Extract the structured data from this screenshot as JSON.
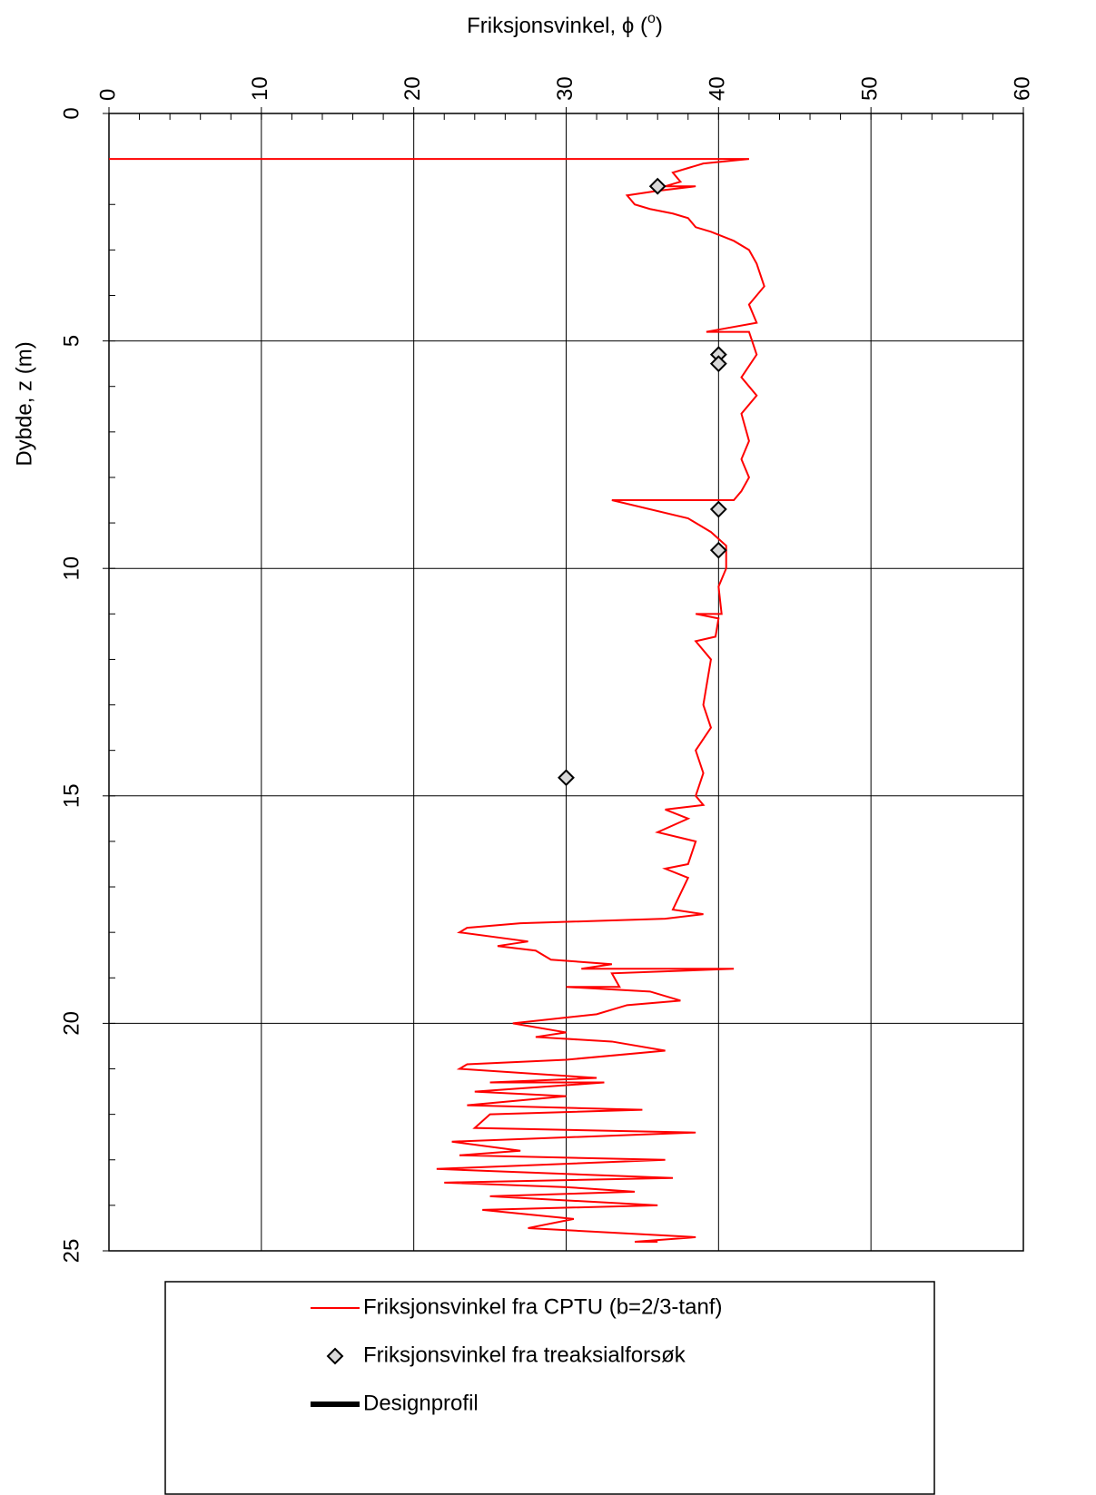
{
  "chart_data": {
    "type": "line",
    "xlabel": [
      "Friksjonsvinkel, ϕ (",
      "o",
      ")"
    ],
    "ylabel": "Dybde, z (m)",
    "xlim": [
      0,
      60
    ],
    "xticks": [
      0,
      10,
      20,
      30,
      40,
      50,
      60
    ],
    "ylim": [
      0,
      25
    ],
    "yticks": [
      0,
      5,
      10,
      15,
      20,
      25
    ],
    "y_inverted": true,
    "grid": true,
    "series": [
      {
        "name": "Friksjonsvinkel fra CPTU (b=2/3-tanf)",
        "color": "#ff0000",
        "marker": "line",
        "x": [
          0,
          42,
          39,
          38,
          37,
          37.5,
          36.5,
          38.5,
          36,
          34,
          34.5,
          35.5,
          37,
          38,
          38.5,
          39.5,
          41,
          42,
          42.5,
          43,
          42,
          42.5,
          39.2,
          42,
          42.5,
          41.5,
          42.5,
          41.5,
          42,
          41.5,
          42,
          41.5,
          41,
          33,
          38,
          39.5,
          40.5,
          40.5,
          40,
          40.2,
          38.5,
          40,
          39.8,
          38.5,
          39.5,
          39,
          39.5,
          38.5,
          39,
          38.5,
          39,
          36.5,
          38,
          36,
          38.5,
          38,
          36.5,
          38,
          37,
          39,
          36.5,
          27,
          23.5,
          23,
          27.5,
          25.5,
          28,
          29,
          33,
          31,
          41,
          33,
          33.5,
          30,
          35.5,
          37.5,
          34,
          32,
          26.5,
          30,
          28,
          33,
          36.5,
          30,
          23.5,
          23,
          32,
          25,
          32.5,
          24,
          30,
          23.5,
          35,
          25,
          24,
          38.5,
          22.5,
          27,
          23,
          36.5,
          21.5,
          37,
          22,
          30,
          34.5,
          25,
          36,
          24.5,
          30.5,
          27.5,
          38.5,
          34.5,
          36
        ],
        "y": [
          1.0,
          1.0,
          1.1,
          1.2,
          1.3,
          1.5,
          1.6,
          1.6,
          1.7,
          1.8,
          2.0,
          2.1,
          2.2,
          2.3,
          2.5,
          2.6,
          2.8,
          3.0,
          3.3,
          3.8,
          4.2,
          4.6,
          4.8,
          4.8,
          5.3,
          5.8,
          6.2,
          6.6,
          7.2,
          7.6,
          8.0,
          8.3,
          8.5,
          8.5,
          8.9,
          9.2,
          9.5,
          10,
          10.4,
          11.0,
          11.0,
          11.1,
          11.5,
          11.6,
          12.0,
          13.0,
          13.5,
          14.0,
          14.5,
          15.0,
          15.2,
          15.3,
          15.5,
          15.8,
          16.0,
          16.5,
          16.6,
          16.8,
          17.5,
          17.6,
          17.7,
          17.8,
          17.9,
          18.0,
          18.2,
          18.3,
          18.4,
          18.6,
          18.7,
          18.8,
          18.8,
          18.9,
          19.2,
          19.2,
          19.3,
          19.5,
          19.6,
          19.8,
          20.0,
          20.2,
          20.3,
          20.4,
          20.6,
          20.8,
          20.9,
          21.0,
          21.2,
          21.3,
          21.3,
          21.5,
          21.6,
          21.8,
          21.9,
          22.0,
          22.3,
          22.4,
          22.6,
          22.8,
          22.9,
          23.0,
          23.2,
          23.4,
          23.5,
          23.6,
          23.7,
          23.8,
          24.0,
          24.1,
          24.3,
          24.5,
          24.7,
          24.8,
          24.8
        ]
      },
      {
        "name": "Friksjonsvinkel fra treaksialforsøk",
        "color": "#d9d9d9",
        "marker": "diamond",
        "x": [
          36,
          40,
          40,
          40,
          40,
          30
        ],
        "y": [
          1.6,
          5.3,
          5.5,
          8.7,
          9.6,
          14.6
        ]
      },
      {
        "name": "Designprofil",
        "color": "#000000",
        "marker": "thick-line",
        "x": [],
        "y": []
      }
    ]
  }
}
